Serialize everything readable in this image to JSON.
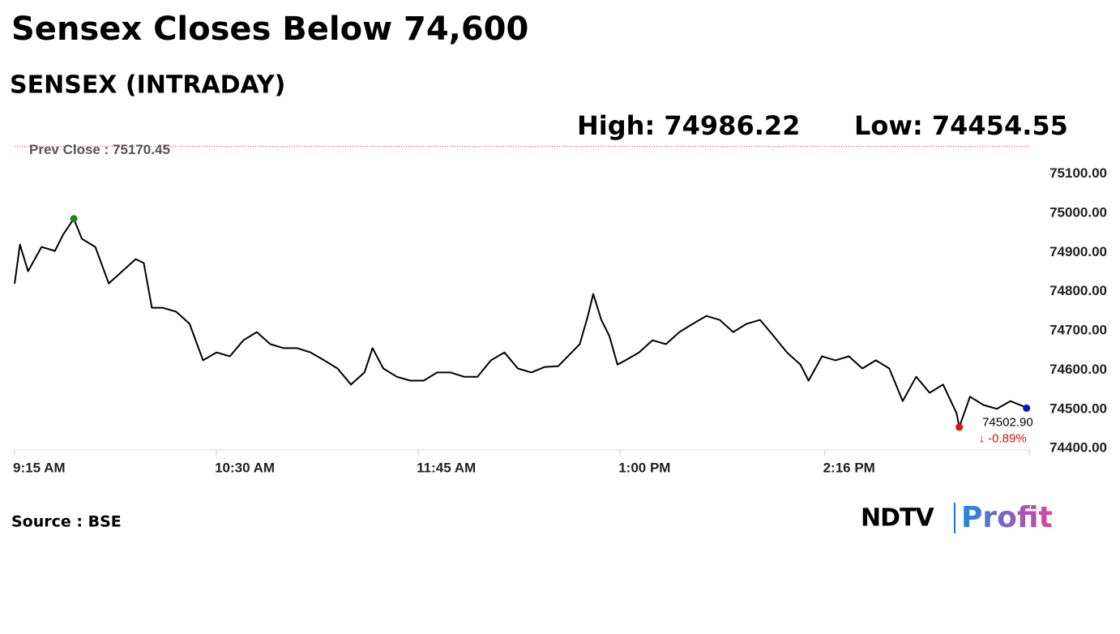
{
  "chart_data": {
    "type": "line",
    "title": "Sensex Closes Below 74,600",
    "subtitle": "SENSEX (INTRADAY)",
    "high_label": "High: 74986.22",
    "low_label": "Low: 74454.55",
    "prev_close": {
      "value": 75170.45,
      "label": "Prev Close : 75170.45"
    },
    "last_label": "74502.90",
    "change_label": "↓ -0.89%",
    "source": "Source : BSE",
    "logo": {
      "left": "NDTV",
      "right": "Profit"
    },
    "x": [
      555,
      557,
      560,
      565,
      570,
      573,
      577,
      580,
      585,
      590,
      595,
      600,
      603,
      606,
      610,
      615,
      620,
      625,
      630,
      635,
      640,
      645,
      650,
      655,
      660,
      665,
      670,
      675,
      680,
      685,
      688,
      692,
      697,
      702,
      707,
      712,
      717,
      722,
      727,
      732,
      737,
      742,
      747,
      752,
      757,
      762,
      765,
      768,
      770,
      773,
      776,
      779,
      782,
      787,
      792,
      797,
      802,
      807,
      812,
      817,
      822,
      827,
      832,
      837,
      842,
      847,
      850,
      855,
      860,
      865,
      870,
      875,
      880,
      885,
      890,
      895,
      900,
      905,
      906,
      910,
      915,
      920,
      925,
      930,
      931
    ],
    "series": [
      {
        "name": "SENSEX",
        "color": "#000000",
        "values": [
          74820,
          74920,
          74852,
          74914,
          74904,
          74945,
          74986.22,
          74935,
          74914,
          74821,
          74852,
          74883,
          74873,
          74759,
          74759,
          74749,
          74718,
          74625,
          74645,
          74635,
          74676,
          74697,
          74666,
          74656,
          74656,
          74645,
          74625,
          74604,
          74563,
          74594,
          74656,
          74604,
          74583,
          74573,
          74573,
          74594,
          74594,
          74583,
          74583,
          74625,
          74645,
          74604,
          74594,
          74608,
          74610,
          74645,
          74666,
          74738,
          74794,
          74728,
          74687,
          74614,
          74625,
          74645,
          74676,
          74666,
          74697,
          74718,
          74738,
          74728,
          74697,
          74718,
          74728,
          74687,
          74645,
          74614,
          74573,
          74635,
          74625,
          74635,
          74604,
          74625,
          74604,
          74521,
          74583,
          74542,
          74563,
          74490,
          74454.55,
          74532,
          74511,
          74501,
          74521,
          74507,
          74502.9
        ]
      }
    ],
    "xlim": [
      555,
      932
    ],
    "xticks": [
      {
        "value": 555,
        "label": "9:15 AM"
      },
      {
        "value": 630,
        "label": "10:30 AM"
      },
      {
        "value": 705,
        "label": "11:45 AM"
      },
      {
        "value": 780,
        "label": "1:00 PM"
      },
      {
        "value": 856,
        "label": "2:16 PM"
      }
    ],
    "ylim": [
      74390,
      75180
    ],
    "yticks": [
      {
        "value": 74400,
        "label": "74400.00"
      },
      {
        "value": 74500,
        "label": "74500.00"
      },
      {
        "value": 74600,
        "label": "74600.00"
      },
      {
        "value": 74700,
        "label": "74700.00"
      },
      {
        "value": 74800,
        "label": "74800.00"
      },
      {
        "value": 74900,
        "label": "74900.00"
      },
      {
        "value": 75000,
        "label": "75000.00"
      },
      {
        "value": 75100,
        "label": "75100.00"
      }
    ],
    "grid": false
  }
}
